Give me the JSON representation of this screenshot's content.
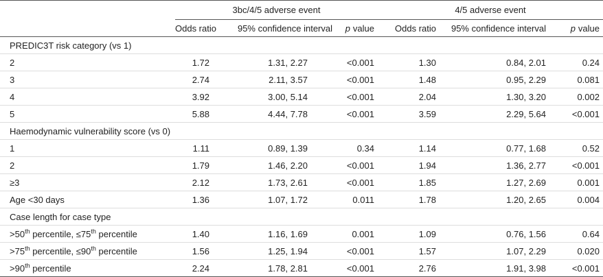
{
  "table": {
    "group_headers": [
      "3bc/4/5 adverse event",
      "4/5 adverse event"
    ],
    "columns": [
      "Odds ratio",
      "95% confidence interval",
      {
        "italic": "p",
        "text": "value"
      },
      "Odds ratio",
      "95% confidence interval",
      {
        "italic": "p",
        "text": "value"
      }
    ],
    "rows": [
      {
        "label": [
          "PREDIC3T risk category (vs 1)"
        ]
      },
      {
        "label": [
          "2"
        ],
        "cells": [
          "1.72",
          "1.31, 2.27",
          "<0.001",
          "1.30",
          "0.84, 2.01",
          "0.24"
        ]
      },
      {
        "label": [
          "3"
        ],
        "cells": [
          "2.74",
          "2.11, 3.57",
          "<0.001",
          "1.48",
          "0.95, 2.29",
          "0.081"
        ]
      },
      {
        "label": [
          "4"
        ],
        "cells": [
          "3.92",
          "3.00, 5.14",
          "<0.001",
          "2.04",
          "1.30, 3.20",
          "0.002"
        ]
      },
      {
        "label": [
          "5"
        ],
        "cells": [
          "5.88",
          "4.44, 7.78",
          "<0.001",
          "3.59",
          "2.29, 5.64",
          "<0.001"
        ]
      },
      {
        "label": [
          "Haemodynamic vulnerability score (vs 0)"
        ]
      },
      {
        "label": [
          "1"
        ],
        "cells": [
          "1.11",
          "0.89, 1.39",
          "0.34",
          "1.14",
          "0.77, 1.68",
          "0.52"
        ]
      },
      {
        "label": [
          "2"
        ],
        "cells": [
          "1.79",
          "1.46, 2.20",
          "<0.001",
          "1.94",
          "1.36, 2.77",
          "<0.001"
        ]
      },
      {
        "label": [
          "≥3"
        ],
        "cells": [
          "2.12",
          "1.73, 2.61",
          "<0.001",
          "1.85",
          "1.27, 2.69",
          "0.001"
        ]
      },
      {
        "label": [
          "Age <30 days"
        ],
        "cells": [
          "1.36",
          "1.07, 1.72",
          "0.011",
          "1.78",
          "1.20, 2.65",
          "0.004"
        ]
      },
      {
        "label": [
          "Case length for case type"
        ]
      },
      {
        "label": [
          ">50",
          "th",
          " percentile, ≤75",
          "th",
          " percentile"
        ],
        "cells": [
          "1.40",
          "1.16, 1.69",
          "0.001",
          "1.09",
          "0.76, 1.56",
          "0.64"
        ]
      },
      {
        "label": [
          ">75",
          "th",
          " percentile, ≤90",
          "th",
          " percentile"
        ],
        "cells": [
          "1.56",
          "1.25, 1.94",
          "<0.001",
          "1.57",
          "1.07, 2.29",
          "0.020"
        ]
      },
      {
        "label": [
          ">90",
          "th",
          " percentile"
        ],
        "cells": [
          "2.24",
          "1.78, 2.81",
          "<0.001",
          "2.76",
          "1.91, 3.98",
          "<0.001"
        ]
      }
    ]
  }
}
